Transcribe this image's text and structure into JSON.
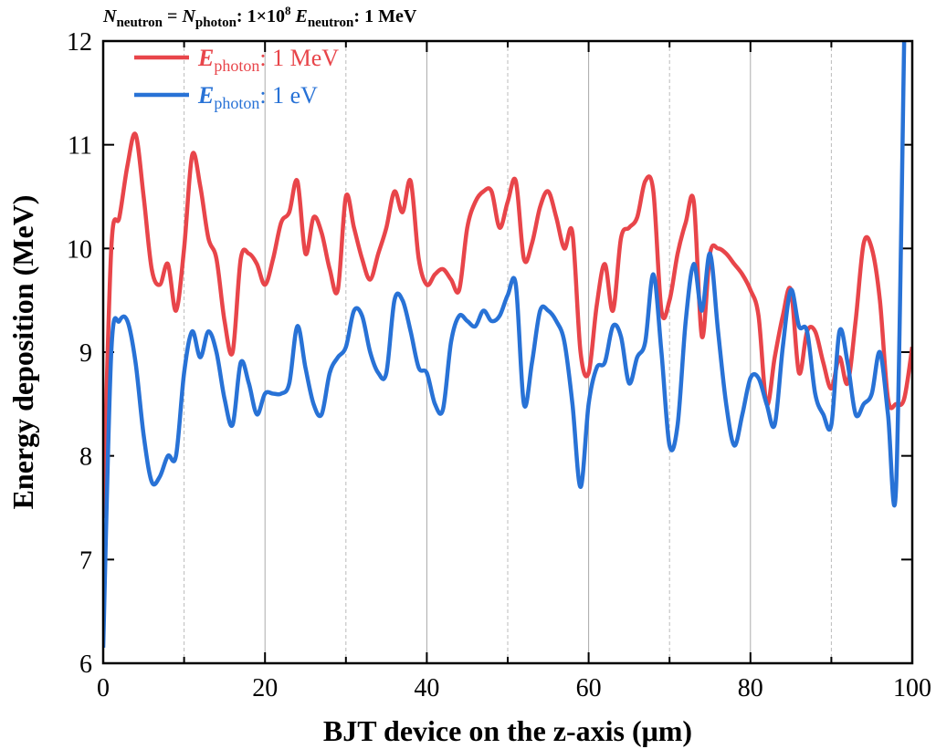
{
  "chart_data": {
    "type": "line",
    "title": [
      "N",
      "neutron",
      " = ",
      "N",
      "photon",
      ": 1×10",
      "8",
      " E",
      "neutron",
      ": 1 MeV"
    ],
    "xlabel": "BJT device on the z-axis (μm)",
    "ylabel": "Energy deposition (MeV)",
    "x": [
      0,
      1,
      2,
      3,
      4,
      5,
      6,
      7,
      8,
      9,
      10,
      11,
      12,
      13,
      14,
      15,
      16,
      17,
      18,
      19,
      20,
      21,
      22,
      23,
      24,
      25,
      26,
      27,
      28,
      29,
      30,
      31,
      32,
      33,
      34,
      35,
      36,
      37,
      38,
      39,
      40,
      41,
      42,
      43,
      44,
      45,
      46,
      47,
      48,
      49,
      50,
      51,
      52,
      53,
      54,
      55,
      56,
      57,
      58,
      59,
      60,
      61,
      62,
      63,
      64,
      65,
      66,
      67,
      68,
      69,
      70,
      71,
      72,
      73,
      74,
      75,
      76,
      77,
      78,
      79,
      80,
      81,
      82,
      83,
      84,
      85,
      86,
      87,
      88,
      89,
      90,
      91,
      92,
      93,
      94,
      95,
      96,
      97,
      98,
      99,
      100
    ],
    "series": [
      {
        "name": [
          "E",
          "photon",
          ": 1 MeV"
        ],
        "color": "#e8454a",
        "values": [
          7.4,
          10.0,
          10.3,
          10.8,
          11.1,
          10.5,
          9.8,
          9.65,
          9.85,
          9.4,
          10.0,
          10.9,
          10.6,
          10.1,
          9.9,
          9.3,
          9.0,
          9.9,
          9.95,
          9.85,
          9.65,
          9.9,
          10.25,
          10.35,
          10.65,
          9.95,
          10.3,
          10.15,
          9.8,
          9.6,
          10.5,
          10.2,
          9.9,
          9.7,
          9.95,
          10.2,
          10.55,
          10.35,
          10.65,
          9.9,
          9.65,
          9.75,
          9.8,
          9.7,
          9.6,
          10.2,
          10.45,
          10.55,
          10.55,
          10.2,
          10.45,
          10.65,
          9.9,
          10.05,
          10.4,
          10.55,
          10.3,
          10.0,
          10.15,
          9.0,
          8.8,
          9.45,
          9.85,
          9.4,
          10.1,
          10.2,
          10.3,
          10.65,
          10.55,
          9.4,
          9.5,
          9.95,
          10.25,
          10.45,
          9.15,
          9.95,
          10.0,
          9.95,
          9.85,
          9.75,
          9.6,
          9.35,
          8.5,
          8.95,
          9.35,
          9.6,
          8.8,
          9.2,
          9.2,
          8.9,
          8.65,
          8.95,
          8.7,
          9.3,
          10.05,
          10.0,
          9.5,
          8.55,
          8.5,
          8.55,
          9.05
        ]
      },
      {
        "name": [
          "E",
          "photon",
          ": 1 eV"
        ],
        "color": "#2872d6",
        "values": [
          6.15,
          9.0,
          9.3,
          9.3,
          8.9,
          8.2,
          7.75,
          7.8,
          8.0,
          8.0,
          8.8,
          9.2,
          8.95,
          9.2,
          9.0,
          8.55,
          8.3,
          8.9,
          8.7,
          8.4,
          8.6,
          8.6,
          8.6,
          8.7,
          9.25,
          8.85,
          8.5,
          8.4,
          8.8,
          8.95,
          9.05,
          9.4,
          9.35,
          9.0,
          8.8,
          8.8,
          9.5,
          9.5,
          9.2,
          8.85,
          8.8,
          8.5,
          8.45,
          9.1,
          9.35,
          9.3,
          9.25,
          9.4,
          9.3,
          9.35,
          9.55,
          9.65,
          8.5,
          8.9,
          9.4,
          9.4,
          9.3,
          9.1,
          8.5,
          7.7,
          8.5,
          8.85,
          8.9,
          9.25,
          9.15,
          8.7,
          8.95,
          9.1,
          9.75,
          9.0,
          8.1,
          8.3,
          9.3,
          9.85,
          9.4,
          9.95,
          9.2,
          8.5,
          8.1,
          8.4,
          8.75,
          8.75,
          8.5,
          8.3,
          9.05,
          9.6,
          9.25,
          9.2,
          8.6,
          8.4,
          8.3,
          9.2,
          8.9,
          8.4,
          8.5,
          8.6,
          9.0,
          8.4,
          7.7,
          12,
          null
        ]
      }
    ],
    "xlim": [
      0,
      100
    ],
    "xticks": [
      0,
      20,
      40,
      60,
      80,
      100
    ],
    "xminorticks": [
      10,
      30,
      50,
      70,
      90
    ],
    "ylim": [
      6,
      12
    ],
    "yticks": [
      6,
      7,
      8,
      9,
      10,
      11,
      12
    ],
    "grid": true
  }
}
